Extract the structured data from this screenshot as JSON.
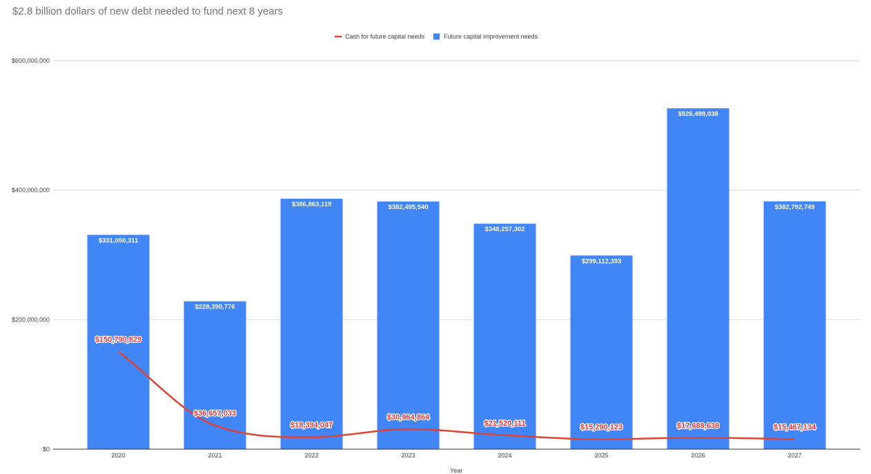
{
  "chart_data": {
    "type": "bar",
    "title": "$2.8 billion dollars of new debt needed to fund next 8 years",
    "xlabel": "Year",
    "ylabel": "",
    "ylim": [
      0,
      600000000
    ],
    "y_ticks": [
      0,
      200000000,
      400000000,
      600000000
    ],
    "y_tick_labels": [
      "$0",
      "$200,000,000",
      "$400,000,000",
      "$600,000,000"
    ],
    "grid": true,
    "legend_position": "top-center",
    "categories": [
      "2020",
      "2021",
      "2022",
      "2023",
      "2024",
      "2025",
      "2026",
      "2027"
    ],
    "series": [
      {
        "name": "Cash for future capital needs",
        "type": "line",
        "smooth": true,
        "color": "#db4437",
        "label_color": "#e8383d",
        "values": [
          150790829,
          36657033,
          18394047,
          30964864,
          21520111,
          15290123,
          17688638,
          15467134
        ],
        "data_labels": [
          "$150,790,829",
          "$36,657,033",
          "$18,394,047",
          "$30,964,864",
          "$21,520,111",
          "$15,290,123",
          "$17,688,638",
          "$15,467,134"
        ]
      },
      {
        "name": "Future capital improvement needs",
        "type": "bar",
        "color": "#4285f4",
        "values": [
          331050311,
          228390776,
          386863119,
          382495540,
          348257302,
          299112393,
          526499038,
          382792749
        ],
        "data_labels": [
          "$331,050,311",
          "$228,390,776",
          "$386,863,119",
          "$382,495,540",
          "$348,257,302",
          "$299,112,393",
          "$526,499,038",
          "$382,792,749"
        ]
      }
    ]
  }
}
